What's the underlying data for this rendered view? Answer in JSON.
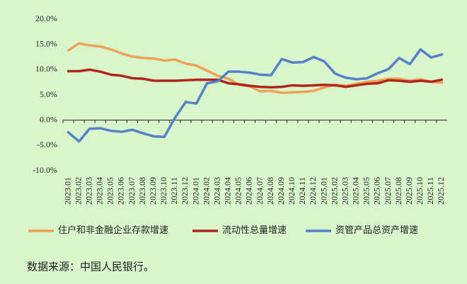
{
  "chart_data": {
    "type": "line",
    "categories": [
      "2023.01",
      "2023.02",
      "2023.03",
      "2023.04",
      "2023.05",
      "2023.06",
      "2023.07",
      "2023.08",
      "2023.09",
      "2023.10",
      "2023.11",
      "2023.12",
      "2024.01",
      "2024.02",
      "2024.03",
      "2024.04",
      "2024.05",
      "2024.06",
      "2024.07",
      "2024.08",
      "2024.09",
      "2024.10",
      "2024.11",
      "2024.12",
      "2025.01",
      "2025.02",
      "2025.03",
      "2025.04",
      "2025.05",
      "2025.06",
      "2025.07",
      "2025.08",
      "2025.09",
      "2025.10",
      "2025.11",
      "2025.12"
    ],
    "series": [
      {
        "name": "住户和非金融企业存款增速",
        "color": "#efa256",
        "values": [
          13.8,
          15.2,
          14.8,
          14.6,
          14.0,
          13.2,
          12.6,
          12.3,
          12.2,
          11.8,
          12.0,
          11.2,
          10.8,
          9.8,
          8.8,
          8.2,
          7.0,
          6.7,
          5.7,
          5.8,
          5.4,
          5.5,
          5.6,
          5.8,
          6.5,
          7.0,
          6.8,
          7.2,
          7.6,
          7.8,
          8.2,
          8.2,
          7.8,
          8.1,
          7.6,
          7.4
        ]
      },
      {
        "name": "流动性总量增速",
        "color": "#b0261c",
        "values": [
          9.7,
          9.7,
          10.0,
          9.6,
          9.0,
          8.8,
          8.3,
          8.2,
          7.8,
          7.8,
          7.8,
          7.9,
          8.0,
          8.0,
          8.0,
          7.3,
          7.1,
          6.8,
          6.6,
          6.5,
          6.6,
          6.9,
          6.8,
          6.9,
          7.0,
          6.9,
          6.6,
          6.9,
          7.2,
          7.3,
          7.9,
          7.8,
          7.6,
          7.8,
          7.6,
          8.0
        ]
      },
      {
        "name": "资管产品总资产增速",
        "color": "#5582c6",
        "values": [
          -2.4,
          -4.2,
          -1.7,
          -1.6,
          -2.1,
          -2.3,
          -1.9,
          -2.6,
          -3.2,
          -3.3,
          0.5,
          3.6,
          3.3,
          7.3,
          7.7,
          9.6,
          9.6,
          9.4,
          9.0,
          8.9,
          12.1,
          11.4,
          11.5,
          12.5,
          11.6,
          9.2,
          8.4,
          8.1,
          8.3,
          9.3,
          10.1,
          12.3,
          11.1,
          14.0,
          12.4,
          13.0
        ]
      }
    ],
    "ylim": [
      -10,
      20
    ],
    "yticks": [
      {
        "value": -10,
        "label": "-10.0%"
      },
      {
        "value": -5,
        "label": "-5.0%"
      },
      {
        "value": 0,
        "label": "0.0%"
      },
      {
        "value": 5,
        "label": "5.0%"
      },
      {
        "value": 10,
        "label": "10.0%"
      },
      {
        "value": 15,
        "label": "15.0%"
      },
      {
        "value": 20,
        "label": "20.0%"
      }
    ],
    "source": "数据来源：中国人民银行。"
  }
}
